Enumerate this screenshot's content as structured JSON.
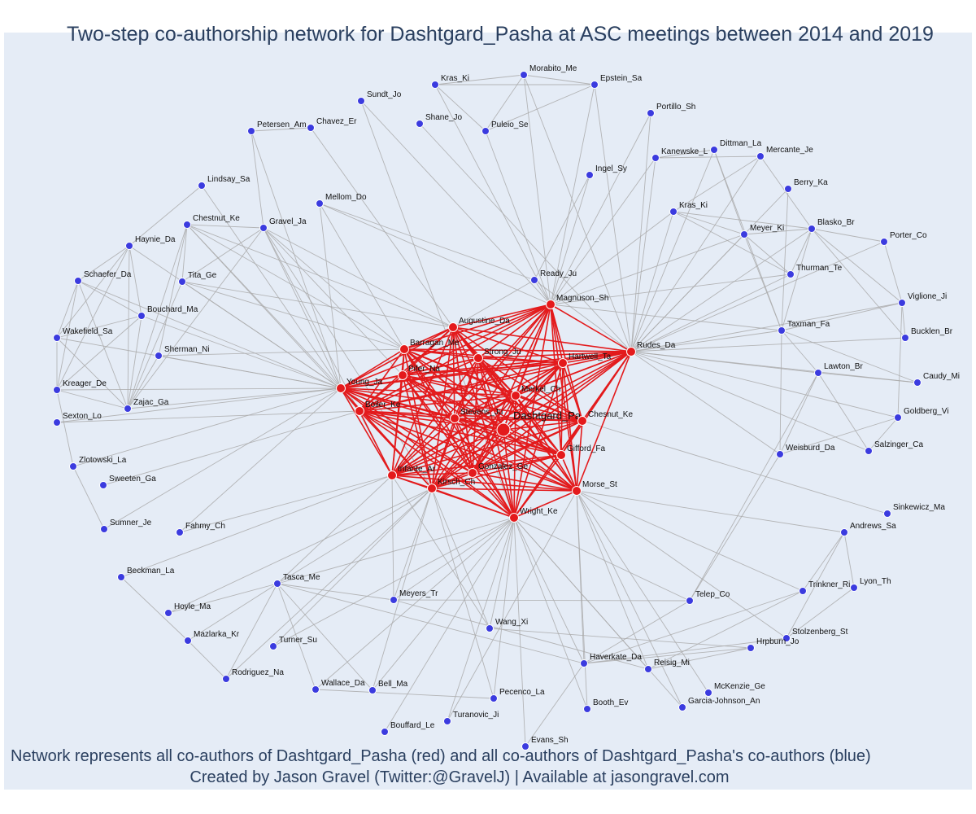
{
  "title": "Two-step co-authorship network for Dashtgard_Pasha at ASC meetings between 2014 and 2019",
  "footer": {
    "line1": "Network represents all co-authors of Dashtgard_Pasha (red) and all co-authors of Dashtgard_Pasha's co-authors (blue)",
    "line2": "Created by Jason Gravel (Twitter:@GravelJ) | Available at jasongravel.com"
  },
  "colors": {
    "panel": "#e5ecf6",
    "red_node": "#e41a1c",
    "red_edge": "#e31a1c",
    "blue_node": "#3b3bdf",
    "gray_edge": "#aaaaaa",
    "text": "#2a3f5f"
  },
  "nodes": [
    {
      "id": "Dashtgard_Pa",
      "group": "center"
    },
    {
      "id": "Magnuson_Sh",
      "group": "red"
    },
    {
      "id": "Augustine_Da",
      "group": "red"
    },
    {
      "id": "Barragan_Me",
      "group": "red"
    },
    {
      "id": "Strong_Ju",
      "group": "red"
    },
    {
      "id": "Hartwell_Ta",
      "group": "red"
    },
    {
      "id": "Rudes_Da",
      "group": "red"
    },
    {
      "id": "Pifer_Na",
      "group": "red"
    },
    {
      "id": "Young_Ja",
      "group": "red"
    },
    {
      "id": "Boiler_Ke",
      "group": "red"
    },
    {
      "id": "Merkel_Ch",
      "group": "red"
    },
    {
      "id": "Chesnut_Ke",
      "group": "red"
    },
    {
      "id": "Gifford_Fa",
      "group": "red"
    },
    {
      "id": "Morse_St",
      "group": "red"
    },
    {
      "id": "Wright_Ke",
      "group": "red"
    },
    {
      "id": "Infante_Ar",
      "group": "red"
    },
    {
      "id": "Gonzalez_Ge",
      "group": "red"
    },
    {
      "id": "Kirsch_Ch",
      "group": "red"
    },
    {
      "id": "Stevens_Ju",
      "group": "red"
    },
    {
      "id": "Kras_Ki",
      "group": "blue"
    },
    {
      "id": "Morabito_Me",
      "group": "blue"
    },
    {
      "id": "Epstein_Sa",
      "group": "blue"
    },
    {
      "id": "Sundt_Jo",
      "group": "blue"
    },
    {
      "id": "Shane_Jo",
      "group": "blue"
    },
    {
      "id": "Puleio_Se",
      "group": "blue"
    },
    {
      "id": "Portillo_Sh",
      "group": "blue"
    },
    {
      "id": "Petersen_Am",
      "group": "blue"
    },
    {
      "id": "Chavez_Er",
      "group": "blue"
    },
    {
      "id": "Dittman_La",
      "group": "blue"
    },
    {
      "id": "Kanewske_L",
      "group": "blue"
    },
    {
      "id": "Mercante_Je",
      "group": "blue"
    },
    {
      "id": "Ingel_Sy",
      "group": "blue"
    },
    {
      "id": "Lindsay_Sa",
      "group": "blue"
    },
    {
      "id": "Berry_Ka",
      "group": "blue"
    },
    {
      "id": "Mellom_Do",
      "group": "blue"
    },
    {
      "id": "Kras_Ki_2",
      "label": "Kras_Ki",
      "group": "blue"
    },
    {
      "id": "Chestnut_Ke",
      "group": "blue"
    },
    {
      "id": "Gravel_Ja",
      "group": "blue"
    },
    {
      "id": "Blasko_Br",
      "group": "blue"
    },
    {
      "id": "Meyer_Ki",
      "group": "blue"
    },
    {
      "id": "Haynie_Da",
      "group": "blue"
    },
    {
      "id": "Porter_Co",
      "group": "blue"
    },
    {
      "id": "Schaefer_Da",
      "group": "blue"
    },
    {
      "id": "Tita_Ge",
      "group": "blue"
    },
    {
      "id": "Thurman_Te",
      "group": "blue"
    },
    {
      "id": "Ready_Ju",
      "group": "blue"
    },
    {
      "id": "Viglione_Ji",
      "group": "blue"
    },
    {
      "id": "Bouchard_Ma",
      "group": "blue"
    },
    {
      "id": "Taxman_Fa",
      "group": "blue"
    },
    {
      "id": "Wakefield_Sa",
      "group": "blue"
    },
    {
      "id": "Bucklen_Br",
      "group": "blue"
    },
    {
      "id": "Sherman_Ni",
      "group": "blue"
    },
    {
      "id": "Lawton_Br",
      "group": "blue"
    },
    {
      "id": "Caudy_Mi",
      "group": "blue"
    },
    {
      "id": "Kreager_De",
      "group": "blue"
    },
    {
      "id": "Zajac_Ga",
      "group": "blue"
    },
    {
      "id": "Goldberg_Vi",
      "group": "blue"
    },
    {
      "id": "Sexton_Lo",
      "group": "blue"
    },
    {
      "id": "Weisburd_Da",
      "group": "blue"
    },
    {
      "id": "Salzinger_Ca",
      "group": "blue"
    },
    {
      "id": "Zlotowski_La",
      "group": "blue"
    },
    {
      "id": "Sweeten_Ga",
      "group": "blue"
    },
    {
      "id": "Sinkewicz_Ma",
      "group": "blue"
    },
    {
      "id": "Sumner_Je",
      "group": "blue"
    },
    {
      "id": "Fahmy_Ch",
      "group": "blue"
    },
    {
      "id": "Andrews_Sa",
      "group": "blue"
    },
    {
      "id": "Beckman_La",
      "group": "blue"
    },
    {
      "id": "Tasca_Me",
      "group": "blue"
    },
    {
      "id": "Lyon_Th",
      "group": "blue"
    },
    {
      "id": "Trinkner_Ri",
      "group": "blue"
    },
    {
      "id": "Meyers_Tr",
      "group": "blue"
    },
    {
      "id": "Telep_Co",
      "group": "blue"
    },
    {
      "id": "Hoyle_Ma",
      "group": "blue"
    },
    {
      "id": "Mazlarka_Kr",
      "group": "blue"
    },
    {
      "id": "Wang_Xi",
      "group": "blue"
    },
    {
      "id": "Stolzenberg_St",
      "group": "blue"
    },
    {
      "id": "Turner_Su",
      "group": "blue"
    },
    {
      "id": "Hrpburn_Jo",
      "group": "blue"
    },
    {
      "id": "Haverkate_Da",
      "group": "blue"
    },
    {
      "id": "Reisig_Mi",
      "group": "blue"
    },
    {
      "id": "Rodriguez_Na",
      "group": "blue"
    },
    {
      "id": "Wallace_Da",
      "group": "blue"
    },
    {
      "id": "Bell_Ma",
      "group": "blue"
    },
    {
      "id": "McKenzie_Ge",
      "group": "blue"
    },
    {
      "id": "Pecenco_La",
      "group": "blue"
    },
    {
      "id": "Garcia-Johnson_An",
      "group": "blue"
    },
    {
      "id": "Booth_Ev",
      "group": "blue"
    },
    {
      "id": "Turanovic_Ji",
      "group": "blue"
    },
    {
      "id": "Bouffard_Le",
      "group": "blue"
    },
    {
      "id": "Evans_Sh",
      "group": "blue"
    }
  ],
  "edges": [
    [
      "Kras_Ki",
      "Morabito_Me"
    ],
    [
      "Morabito_Me",
      "Epstein_Sa"
    ],
    [
      "Kras_Ki",
      "Epstein_Sa"
    ],
    [
      "Kras_Ki",
      "Puleio_Se"
    ],
    [
      "Morabito_Me",
      "Puleio_Se"
    ],
    [
      "Epstein_Sa",
      "Puleio_Se"
    ],
    [
      "Kras_Ki",
      "Magnuson_Sh"
    ],
    [
      "Morabito_Me",
      "Magnuson_Sh"
    ],
    [
      "Epstein_Sa",
      "Magnuson_Sh"
    ],
    [
      "Puleio_Se",
      "Magnuson_Sh"
    ],
    [
      "Shane_Jo",
      "Rudes_Da"
    ],
    [
      "Morabito_Me",
      "Rudes_Da"
    ],
    [
      "Epstein_Sa",
      "Rudes_Da"
    ],
    [
      "Sundt_Jo",
      "Wright_Ke"
    ],
    [
      "Chavez_Er",
      "Augustine_Da"
    ],
    [
      "Petersen_Am",
      "Gravel_Ja"
    ],
    [
      "Petersen_Am",
      "Chavez_Er"
    ],
    [
      "Petersen_Am",
      "Young_Ja"
    ],
    [
      "Portillo_Sh",
      "Magnuson_Sh"
    ],
    [
      "Portillo_Sh",
      "Rudes_Da"
    ],
    [
      "Kanewske_L",
      "Dittman_La"
    ],
    [
      "Kanewske_L",
      "Mercante_Je"
    ],
    [
      "Kanewske_L",
      "Rudes_Da"
    ],
    [
      "Kanewske_L",
      "Magnuson_Sh"
    ],
    [
      "Dittman_La",
      "Rudes_Da"
    ],
    [
      "Mercante_Je",
      "Rudes_Da"
    ],
    [
      "Dittman_La",
      "Taxman_Fa"
    ],
    [
      "Mercante_Je",
      "Blasko_Br"
    ],
    [
      "Mercante_Je",
      "Kras_Ki_2"
    ],
    [
      "Dittman_La",
      "Meyer_Ki"
    ],
    [
      "Ingel_Sy",
      "Magnuson_Sh"
    ],
    [
      "Ingel_Sy",
      "Ready_Ju"
    ],
    [
      "Berry_Ka",
      "Rudes_Da"
    ],
    [
      "Berry_Ka",
      "Taxman_Fa"
    ],
    [
      "Kras_Ki_2",
      "Rudes_Da"
    ],
    [
      "Kras_Ki_2",
      "Magnuson_Sh"
    ],
    [
      "Kras_Ki_2",
      "Meyer_Ki"
    ],
    [
      "Kras_Ki_2",
      "Blasko_Br"
    ],
    [
      "Kras_Ki_2",
      "Thurman_Te"
    ],
    [
      "Meyer_Ki",
      "Blasko_Br"
    ],
    [
      "Meyer_Ki",
      "Rudes_Da"
    ],
    [
      "Meyer_Ki",
      "Magnuson_Sh"
    ],
    [
      "Meyer_Ki",
      "Thurman_Te"
    ],
    [
      "Meyer_Ki",
      "Taxman_Fa"
    ],
    [
      "Blasko_Br",
      "Rudes_Da"
    ],
    [
      "Blasko_Br",
      "Porter_Co"
    ],
    [
      "Blasko_Br",
      "Viglione_Ji"
    ],
    [
      "Blasko_Br",
      "Bucklen_Br"
    ],
    [
      "Blasko_Br",
      "Taxman_Fa"
    ],
    [
      "Blasko_Br",
      "Thurman_Te"
    ],
    [
      "Porter_Co",
      "Viglione_Ji"
    ],
    [
      "Porter_Co",
      "Rudes_Da"
    ],
    [
      "Thurman_Te",
      "Rudes_Da"
    ],
    [
      "Thurman_Te",
      "Magnuson_Sh"
    ],
    [
      "Viglione_Ji",
      "Bucklen_Br"
    ],
    [
      "Viglione_Ji",
      "Goldberg_Vi"
    ],
    [
      "Viglione_Ji",
      "Rudes_Da"
    ],
    [
      "Viglione_Ji",
      "Taxman_Fa"
    ],
    [
      "Taxman_Fa",
      "Rudes_Da"
    ],
    [
      "Taxman_Fa",
      "Lawton_Br"
    ],
    [
      "Taxman_Fa",
      "Caudy_Mi"
    ],
    [
      "Taxman_Fa",
      "Magnuson_Sh"
    ],
    [
      "Taxman_Fa",
      "Weisburd_Da"
    ],
    [
      "Bucklen_Br",
      "Rudes_Da"
    ],
    [
      "Caudy_Mi",
      "Rudes_Da"
    ],
    [
      "Caudy_Mi",
      "Lawton_Br"
    ],
    [
      "Lawton_Br",
      "Rudes_Da"
    ],
    [
      "Lawton_Br",
      "Salzinger_Ca"
    ],
    [
      "Lawton_Br",
      "Telep_Co"
    ],
    [
      "Lawton_Br",
      "Weisburd_Da"
    ],
    [
      "Goldberg_Vi",
      "Rudes_Da"
    ],
    [
      "Goldberg_Vi",
      "Salzinger_Ca"
    ],
    [
      "Goldberg_Vi",
      "Weisburd_Da"
    ],
    [
      "Weisburd_Da",
      "Rudes_Da"
    ],
    [
      "Salzinger_Ca",
      "Rudes_Da"
    ],
    [
      "Ready_Ju",
      "Magnuson_Sh"
    ],
    [
      "Ready_Ju",
      "Rudes_Da"
    ],
    [
      "Ready_Ju",
      "Mellom_Do"
    ],
    [
      "Ready_Ju",
      "Augustine_Da"
    ],
    [
      "Mellom_Do",
      "Young_Ja"
    ],
    [
      "Mellom_Do",
      "Barragan_Me"
    ],
    [
      "Mellom_Do",
      "Magnuson_Sh"
    ],
    [
      "Sundt_Jo",
      "Magnuson_Sh"
    ],
    [
      "Lindsay_Sa",
      "Young_Ja"
    ],
    [
      "Lindsay_Sa",
      "Haynie_Da"
    ],
    [
      "Chestnut_Ke",
      "Young_Ja"
    ],
    [
      "Chestnut_Ke",
      "Tita_Ge"
    ],
    [
      "Chestnut_Ke",
      "Gravel_Ja"
    ],
    [
      "Chestnut_Ke",
      "Barragan_Me"
    ],
    [
      "Chestnut_Ke",
      "Augustine_Da"
    ],
    [
      "Chestnut_Ke",
      "Zajac_Ga"
    ],
    [
      "Chestnut_Ke",
      "Boiler_Ke"
    ],
    [
      "Chestnut_Ke",
      "Sherman_Ni"
    ],
    [
      "Gravel_Ja",
      "Young_Ja"
    ],
    [
      "Gravel_Ja",
      "Tita_Ge"
    ],
    [
      "Gravel_Ja",
      "Barragan_Me"
    ],
    [
      "Gravel_Ja",
      "Augustine_Da"
    ],
    [
      "Gravel_Ja",
      "Kirsch_Ch"
    ],
    [
      "Gravel_Ja",
      "Infante_Ar"
    ],
    [
      "Gravel_Ja",
      "Pifer_Na"
    ],
    [
      "Gravel_Ja",
      "Zajac_Ga"
    ],
    [
      "Haynie_Da",
      "Schaefer_Da"
    ],
    [
      "Haynie_Da",
      "Wakefield_Sa"
    ],
    [
      "Haynie_Da",
      "Bouchard_Ma"
    ],
    [
      "Haynie_Da",
      "Kreager_De"
    ],
    [
      "Haynie_Da",
      "Zajac_Ga"
    ],
    [
      "Haynie_Da",
      "Young_Ja"
    ],
    [
      "Schaefer_Da",
      "Wakefield_Sa"
    ],
    [
      "Schaefer_Da",
      "Bouchard_Ma"
    ],
    [
      "Schaefer_Da",
      "Kreager_De"
    ],
    [
      "Schaefer_Da",
      "Zajac_Ga"
    ],
    [
      "Schaefer_Da",
      "Young_Ja"
    ],
    [
      "Wakefield_Sa",
      "Bouchard_Ma"
    ],
    [
      "Wakefield_Sa",
      "Kreager_De"
    ],
    [
      "Wakefield_Sa",
      "Zajac_Ga"
    ],
    [
      "Wakefield_Sa",
      "Young_Ja"
    ],
    [
      "Bouchard_Ma",
      "Kreager_De"
    ],
    [
      "Bouchard_Ma",
      "Zajac_Ga"
    ],
    [
      "Bouchard_Ma",
      "Young_Ja"
    ],
    [
      "Kreager_De",
      "Zajac_Ga"
    ],
    [
      "Kreager_De",
      "Young_Ja"
    ],
    [
      "Zajac_Ga",
      "Young_Ja"
    ],
    [
      "Tita_Ge",
      "Young_Ja"
    ],
    [
      "Tita_Ge",
      "Barragan_Me"
    ],
    [
      "Tita_Ge",
      "Zajac_Ga"
    ],
    [
      "Tita_Ge",
      "Augustine_Da"
    ],
    [
      "Sherman_Ni",
      "Young_Ja"
    ],
    [
      "Sherman_Ni",
      "Barragan_Me"
    ],
    [
      "Sherman_Ni",
      "Zajac_Ga"
    ],
    [
      "Sexton_Lo",
      "Young_Ja"
    ],
    [
      "Sexton_Lo",
      "Boiler_Ke"
    ],
    [
      "Zlotowski_La",
      "Young_Ja"
    ],
    [
      "Zlotowski_La",
      "Sumner_Je"
    ],
    [
      "Zlotowski_La",
      "Kreager_De"
    ],
    [
      "Sweeten_Ga",
      "Boiler_Ke"
    ],
    [
      "Sumner_Je",
      "Young_Ja"
    ],
    [
      "Fahmy_Ch",
      "Young_Ja"
    ],
    [
      "Fahmy_Ch",
      "Infante_Ar"
    ],
    [
      "Beckman_La",
      "Infante_Ar"
    ],
    [
      "Beckman_La",
      "Mazlarka_Kr"
    ],
    [
      "Hoyle_Ma",
      "Kirsch_Ch"
    ],
    [
      "Hoyle_Ma",
      "Tasca_Me"
    ],
    [
      "Mazlarka_Kr",
      "Rodriguez_Na"
    ],
    [
      "Mazlarka_Kr",
      "Tasca_Me"
    ],
    [
      "Tasca_Me",
      "Wright_Ke"
    ],
    [
      "Tasca_Me",
      "Infante_Ar"
    ],
    [
      "Tasca_Me",
      "Kirsch_Ch"
    ],
    [
      "Tasca_Me",
      "Meyers_Tr"
    ],
    [
      "Tasca_Me",
      "Rodriguez_Na"
    ],
    [
      "Tasca_Me",
      "Wallace_Da"
    ],
    [
      "Tasca_Me",
      "Haverkate_Da"
    ],
    [
      "Tasca_Me",
      "Bell_Ma"
    ],
    [
      "Meyers_Tr",
      "Wright_Ke"
    ],
    [
      "Meyers_Tr",
      "Infante_Ar"
    ],
    [
      "Meyers_Tr",
      "Telep_Co"
    ],
    [
      "Meyers_Tr",
      "Kirsch_Ch"
    ],
    [
      "Meyers_Tr",
      "Reisig_Mi"
    ],
    [
      "Turner_Su",
      "Kirsch_Ch"
    ],
    [
      "Turner_Su",
      "Wright_Ke"
    ],
    [
      "Wang_Xi",
      "Wright_Ke"
    ],
    [
      "Wang_Xi",
      "Kirsch_Ch"
    ],
    [
      "Wang_Xi",
      "Hrpburn_Jo"
    ],
    [
      "Wang_Xi",
      "Infante_Ar"
    ],
    [
      "Rodriguez_Na",
      "Kirsch_Ch"
    ],
    [
      "Wallace_Da",
      "Wright_Ke"
    ],
    [
      "Wallace_Da",
      "Pecenco_La"
    ],
    [
      "Bell_Ma",
      "Wright_Ke"
    ],
    [
      "Bell_Ma",
      "Kirsch_Ch"
    ],
    [
      "Pecenco_La",
      "Wright_Ke"
    ],
    [
      "Pecenco_La",
      "Kirsch_Ch"
    ],
    [
      "Turanovic_Ji",
      "Wright_Ke"
    ],
    [
      "Turanovic_Ji",
      "Morse_St"
    ],
    [
      "Bouffard_Le",
      "Wright_Ke"
    ],
    [
      "Evans_Sh",
      "Wright_Ke"
    ],
    [
      "Evans_Sh",
      "Haverkate_Da"
    ],
    [
      "Haverkate_Da",
      "Wright_Ke"
    ],
    [
      "Haverkate_Da",
      "Morse_St"
    ],
    [
      "Haverkate_Da",
      "Stolzenberg_St"
    ],
    [
      "Haverkate_Da",
      "Trinkner_Ri"
    ],
    [
      "Haverkate_Da",
      "Hrpburn_Jo"
    ],
    [
      "Haverkate_Da",
      "Telep_Co"
    ],
    [
      "Reisig_Mi",
      "Wright_Ke"
    ],
    [
      "Reisig_Mi",
      "Morse_St"
    ],
    [
      "Reisig_Mi",
      "Trinkner_Ri"
    ],
    [
      "Reisig_Mi",
      "Hrpburn_Jo"
    ],
    [
      "Booth_Ev",
      "Wright_Ke"
    ],
    [
      "Booth_Ev",
      "Morse_St"
    ],
    [
      "Garcia-Johnson_An",
      "Wright_Ke"
    ],
    [
      "Garcia-Johnson_An",
      "Morse_St"
    ],
    [
      "McKenzie_Ge",
      "Morse_St"
    ],
    [
      "Telep_Co",
      "Wright_Ke"
    ],
    [
      "Telep_Co",
      "Weisburd_Da"
    ],
    [
      "Trinkner_Ri",
      "Morse_St"
    ],
    [
      "Trinkner_Ri",
      "Andrews_Sa"
    ],
    [
      "Andrews_Sa",
      "Morse_St"
    ],
    [
      "Andrews_Sa",
      "Lyon_Th"
    ],
    [
      "Andrews_Sa",
      "Stolzenberg_St"
    ],
    [
      "Lyon_Th",
      "Stolzenberg_St"
    ],
    [
      "Sinkewicz_Ma",
      "Chesnut_Ke"
    ],
    [
      "Stolzenberg_St",
      "Morse_St"
    ]
  ],
  "red_ids": [
    "Dashtgard_Pa",
    "Magnuson_Sh",
    "Augustine_Da",
    "Barragan_Me",
    "Strong_Ju",
    "Hartwell_Ta",
    "Rudes_Da",
    "Pifer_Na",
    "Young_Ja",
    "Boiler_Ke",
    "Merkel_Ch",
    "Chesnut_Ke",
    "Gifford_Fa",
    "Morse_St",
    "Wright_Ke",
    "Infante_Ar",
    "Gonzalez_Ge",
    "Kirsch_Ch",
    "Stevens_Ju"
  ]
}
